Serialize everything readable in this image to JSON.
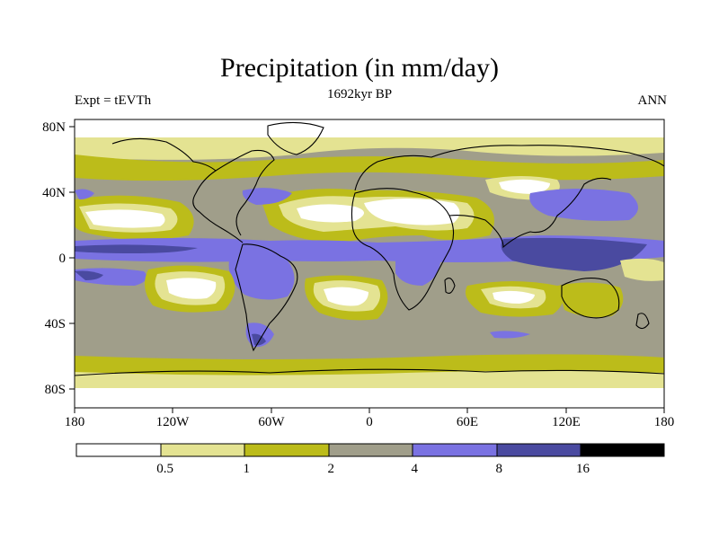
{
  "title": "Precipitation (in mm/day)",
  "subtitle": "1692kyr BP",
  "experiment": "Expt = tEVTh",
  "season": "ANN",
  "map": {
    "lon_ticks": [
      "180",
      "120W",
      "60W",
      "0",
      "60E",
      "120E",
      "180"
    ],
    "lat_ticks": [
      "80N",
      "40N",
      "0",
      "40S",
      "80S"
    ],
    "lon_range": [
      -180,
      180
    ],
    "lat_range": [
      -90,
      90
    ]
  },
  "legend": {
    "labels": [
      "0.5",
      "1",
      "2",
      "4",
      "8",
      "16"
    ],
    "colors": [
      "#ffffff",
      "#e4e392",
      "#bcbc1a",
      "#a09e8a",
      "#7a72e2",
      "#4a4aa0",
      "#000000"
    ]
  }
}
